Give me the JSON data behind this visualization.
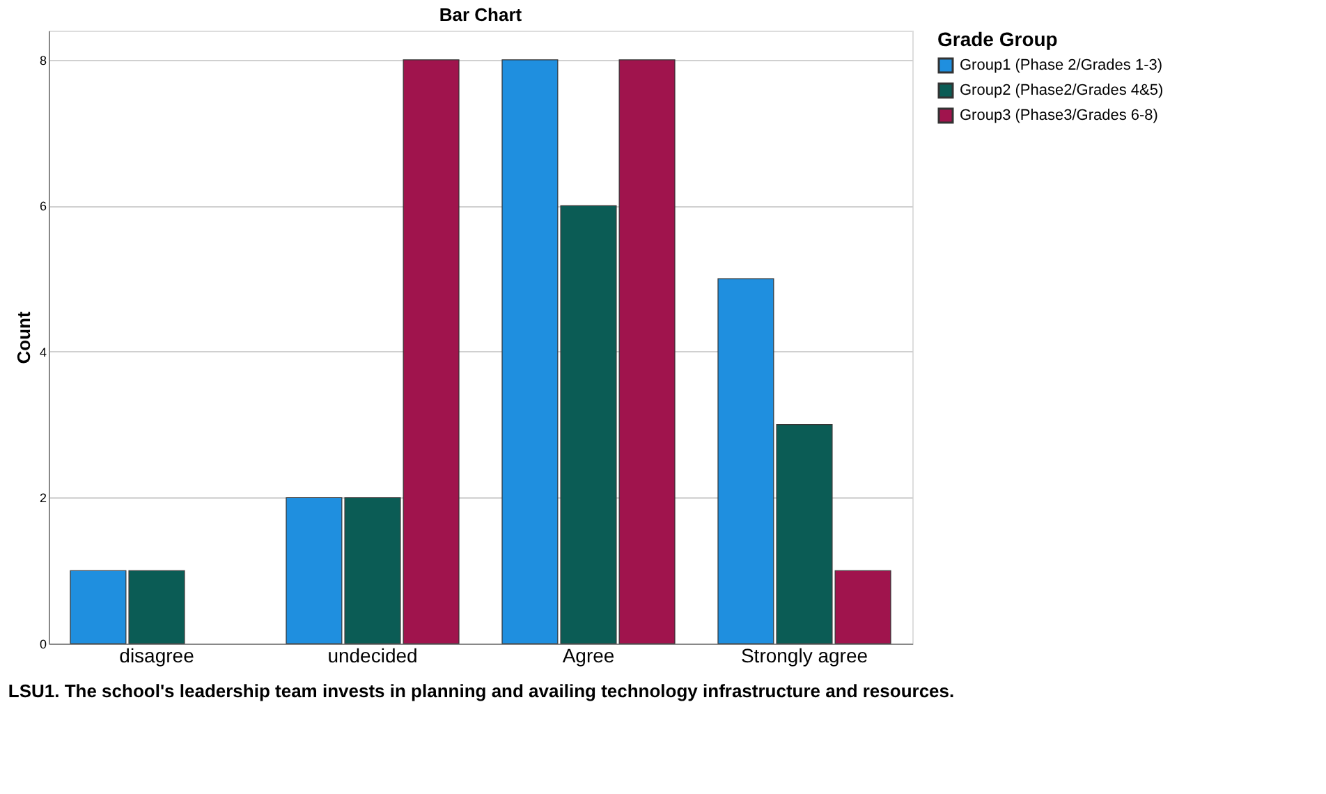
{
  "chart_data": {
    "type": "bar",
    "title": "Bar Chart",
    "xlabel": "LSU1. The school's leadership team invests in planning and availing technology infrastructure and resources.",
    "ylabel": "Count",
    "legend_title": "Grade Group",
    "categories": [
      "disagree",
      "undecided",
      "Agree",
      "Strongly agree"
    ],
    "series": [
      {
        "name": "Group1 (Phase 2/Grades 1-3)",
        "color": "#1f8fdf",
        "values": [
          1,
          2,
          8,
          5
        ]
      },
      {
        "name": "Group2 (Phase2/Grades 4&5)",
        "color": "#0b5c55",
        "values": [
          1,
          2,
          6,
          3
        ]
      },
      {
        "name": "Group3 (Phase3/Grades 6-8)",
        "color": "#a0144d",
        "values": [
          null,
          8,
          8,
          1
        ]
      }
    ],
    "ylim": [
      0,
      8.4
    ],
    "yticks": [
      0,
      2,
      4,
      6,
      8
    ],
    "grid": "y",
    "legend": "top right"
  }
}
